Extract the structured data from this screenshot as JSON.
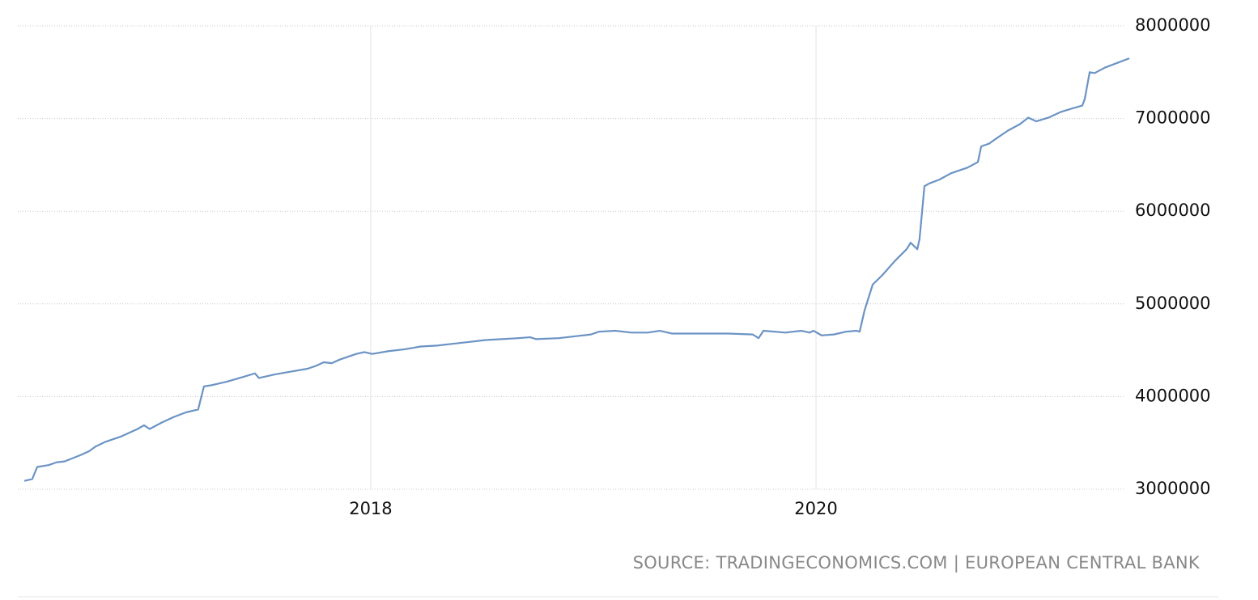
{
  "chart_data": {
    "type": "line",
    "source": "SOURCE: TRADINGECONOMICS.COM | EUROPEAN CENTRAL BANK",
    "x": [
      2016.444,
      2016.48,
      2016.502,
      2016.553,
      2016.589,
      2016.625,
      2016.698,
      2016.735,
      2016.764,
      2016.807,
      2016.88,
      2016.953,
      2016.982,
      2017.007,
      2017.062,
      2017.116,
      2017.171,
      2017.207,
      2017.225,
      2017.251,
      2017.28,
      2017.353,
      2017.425,
      2017.48,
      2017.498,
      2017.571,
      2017.644,
      2017.716,
      2017.753,
      2017.789,
      2017.825,
      2017.862,
      2017.935,
      2017.971,
      2018.007,
      2018.08,
      2018.153,
      2018.225,
      2018.298,
      2018.371,
      2018.444,
      2018.516,
      2018.589,
      2018.662,
      2018.716,
      2018.742,
      2018.844,
      2018.916,
      2018.989,
      2019.025,
      2019.098,
      2019.171,
      2019.244,
      2019.298,
      2019.353,
      2019.462,
      2019.607,
      2019.716,
      2019.742,
      2019.764,
      2019.862,
      2019.935,
      2019.971,
      2019.989,
      2020.025,
      2020.08,
      2020.135,
      2020.182,
      2020.196,
      2020.218,
      2020.255,
      2020.298,
      2020.353,
      2020.407,
      2020.425,
      2020.455,
      2020.465,
      2020.487,
      2020.509,
      2020.553,
      2020.607,
      2020.68,
      2020.727,
      2020.742,
      2020.778,
      2020.807,
      2020.862,
      2020.916,
      2020.953,
      2020.989,
      2021.044,
      2021.098,
      2021.153,
      2021.196,
      2021.207,
      2021.229,
      2021.251,
      2021.298,
      2021.353,
      2021.407
    ],
    "series": [
      {
        "color": "#6b93c4",
        "values": [
          3090000,
          3110000,
          3240000,
          3260000,
          3290000,
          3300000,
          3370000,
          3410000,
          3460000,
          3510000,
          3570000,
          3650000,
          3690000,
          3650000,
          3720000,
          3780000,
          3830000,
          3850000,
          3860000,
          4110000,
          4120000,
          4160000,
          4210000,
          4250000,
          4200000,
          4240000,
          4270000,
          4300000,
          4330000,
          4370000,
          4360000,
          4400000,
          4460000,
          4480000,
          4460000,
          4490000,
          4510000,
          4540000,
          4550000,
          4570000,
          4590000,
          4610000,
          4620000,
          4630000,
          4640000,
          4620000,
          4630000,
          4650000,
          4670000,
          4700000,
          4710000,
          4690000,
          4690000,
          4710000,
          4680000,
          4680000,
          4680000,
          4670000,
          4630000,
          4710000,
          4690000,
          4710000,
          4690000,
          4710000,
          4660000,
          4670000,
          4700000,
          4710000,
          4700000,
          4930000,
          5210000,
          5310000,
          5460000,
          5590000,
          5660000,
          5590000,
          5700000,
          6270000,
          6300000,
          6340000,
          6410000,
          6470000,
          6530000,
          6700000,
          6730000,
          6780000,
          6870000,
          6940000,
          7010000,
          6970000,
          7010000,
          7070000,
          7110000,
          7140000,
          7210000,
          7500000,
          7490000,
          7550000,
          7600000,
          7650000
        ]
      }
    ],
    "xlim": [
      2016.415,
      2021.407
    ],
    "xticks": [
      2018,
      2020
    ],
    "ylim": [
      3000000,
      8000000
    ],
    "yticks": [
      3000000,
      4000000,
      5000000,
      6000000,
      7000000,
      8000000
    ],
    "grid": true
  }
}
